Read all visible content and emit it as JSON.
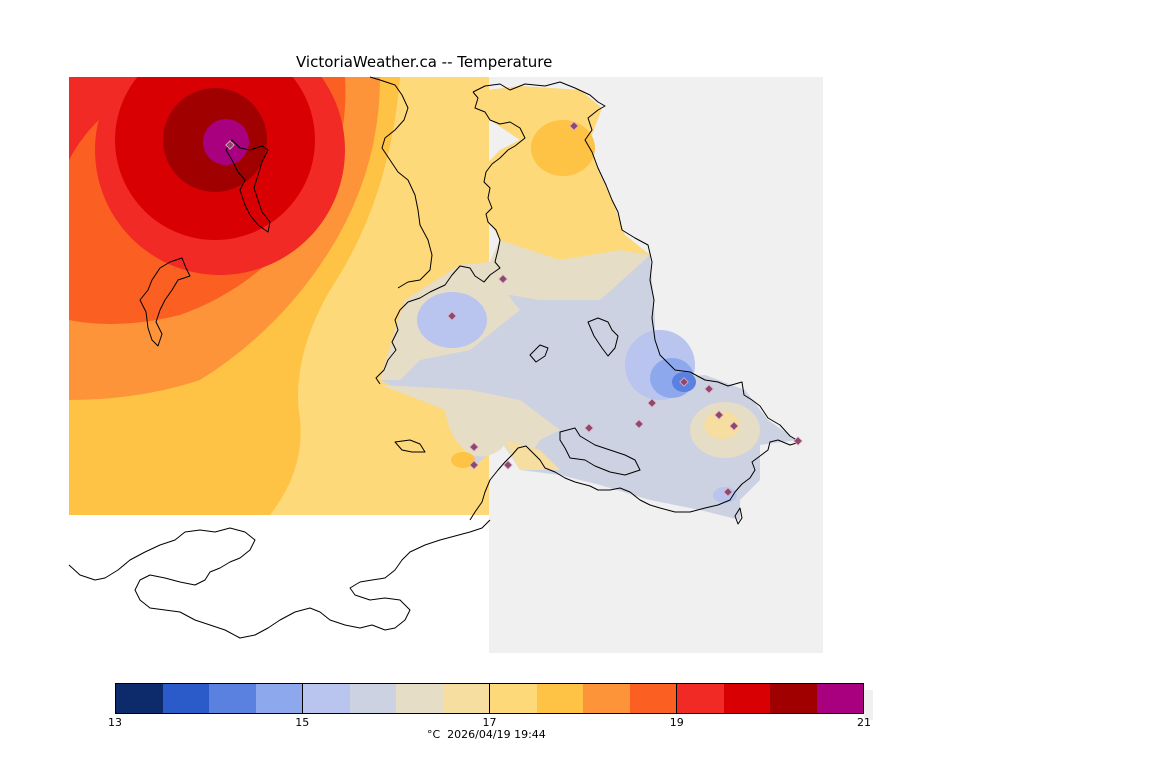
{
  "title": "VictoriaWeather.ca -- Temperature",
  "legend": {
    "min": 13,
    "max": 21,
    "ticks": [
      "13",
      "15",
      "17",
      "19",
      "21"
    ],
    "units_label": "°C  2026/04/19 19:44",
    "colors": [
      "#0d2a6b",
      "#2a5bc8",
      "#5a80e0",
      "#8ea8ee",
      "#b9c4ef",
      "#ccd2e2",
      "#e6ddc6",
      "#f6dda0",
      "#fed979",
      "#fec244",
      "#fd943a",
      "#fb6022",
      "#f12a25",
      "#d90004",
      "#a00000",
      "#a8007f"
    ]
  },
  "colors": {
    "land_gray": "#f0f0f0",
    "coast": "#000000",
    "station_marker": "#8b4a6d"
  },
  "stations_count": 16
}
